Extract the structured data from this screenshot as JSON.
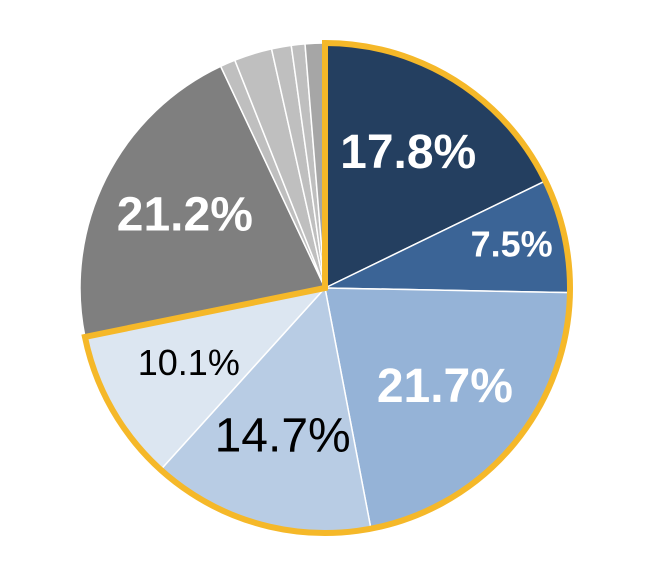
{
  "chart_data": {
    "type": "pie",
    "categories": [
      null,
      null,
      null,
      null,
      null,
      null,
      null,
      null,
      null,
      null,
      null
    ],
    "values": [
      17.8,
      7.5,
      21.7,
      14.7,
      10.1,
      21.2,
      1.0,
      2.5,
      1.3,
      0.9,
      1.3
    ],
    "value_labels": [
      "17.8%",
      "7.5%",
      "21.7%",
      "14.7%",
      "10.1%",
      "21.2%",
      null,
      null,
      null,
      null,
      null
    ],
    "colors": [
      "#243f60",
      "#3b6496",
      "#95b3d7",
      "#b8cce4",
      "#dce6f1",
      "#7f7f7f",
      "#bfbfbf",
      "#bfbfbf",
      "#bfbfbf",
      "#bfbfbf",
      "#a6a6a6"
    ],
    "highlight_range": [
      0,
      4
    ],
    "highlight_color": "#f5b829"
  }
}
